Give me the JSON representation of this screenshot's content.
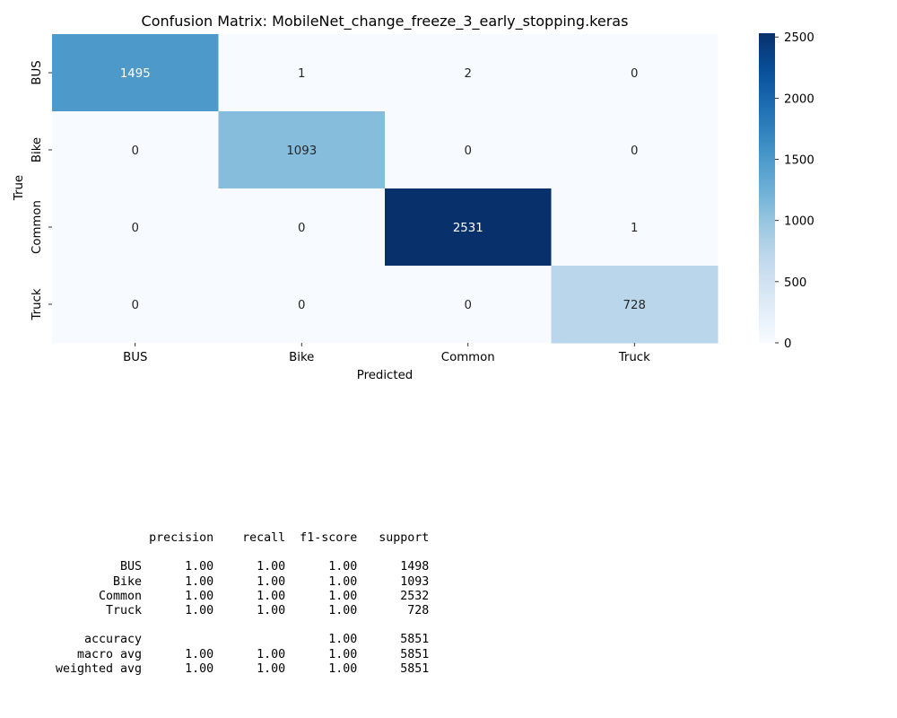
{
  "chart_data": {
    "type": "heatmap",
    "title": "Confusion Matrix: MobileNet_change_freeze_3_early_stopping.keras",
    "xlabel": "Predicted",
    "ylabel": "True",
    "x_categories": [
      "BUS",
      "Bike",
      "Common",
      "Truck"
    ],
    "y_categories": [
      "BUS",
      "Bike",
      "Common",
      "Truck"
    ],
    "values": [
      [
        1495,
        1,
        2,
        0
      ],
      [
        0,
        1093,
        0,
        0
      ],
      [
        0,
        0,
        2531,
        1
      ],
      [
        0,
        0,
        0,
        728
      ]
    ],
    "colormap": "Blues",
    "colorbar": {
      "range": [
        0,
        2531
      ],
      "ticks": [
        0,
        500,
        1000,
        1500,
        2000,
        2500
      ]
    }
  },
  "classification_report": {
    "header": [
      "precision",
      "recall",
      "f1-score",
      "support"
    ],
    "rows": [
      {
        "label": "BUS",
        "values": [
          "1.00",
          "1.00",
          "1.00",
          "1498"
        ]
      },
      {
        "label": "Bike",
        "values": [
          "1.00",
          "1.00",
          "1.00",
          "1093"
        ]
      },
      {
        "label": "Common",
        "values": [
          "1.00",
          "1.00",
          "1.00",
          "2532"
        ]
      },
      {
        "label": "Truck",
        "values": [
          "1.00",
          "1.00",
          "1.00",
          "728"
        ]
      }
    ],
    "summary_rows": [
      {
        "label": "accuracy",
        "values": [
          "",
          "",
          "1.00",
          "5851"
        ]
      },
      {
        "label": "macro avg",
        "values": [
          "1.00",
          "1.00",
          "1.00",
          "5851"
        ]
      },
      {
        "label": "weighted avg",
        "values": [
          "1.00",
          "1.00",
          "1.00",
          "5851"
        ]
      }
    ]
  }
}
